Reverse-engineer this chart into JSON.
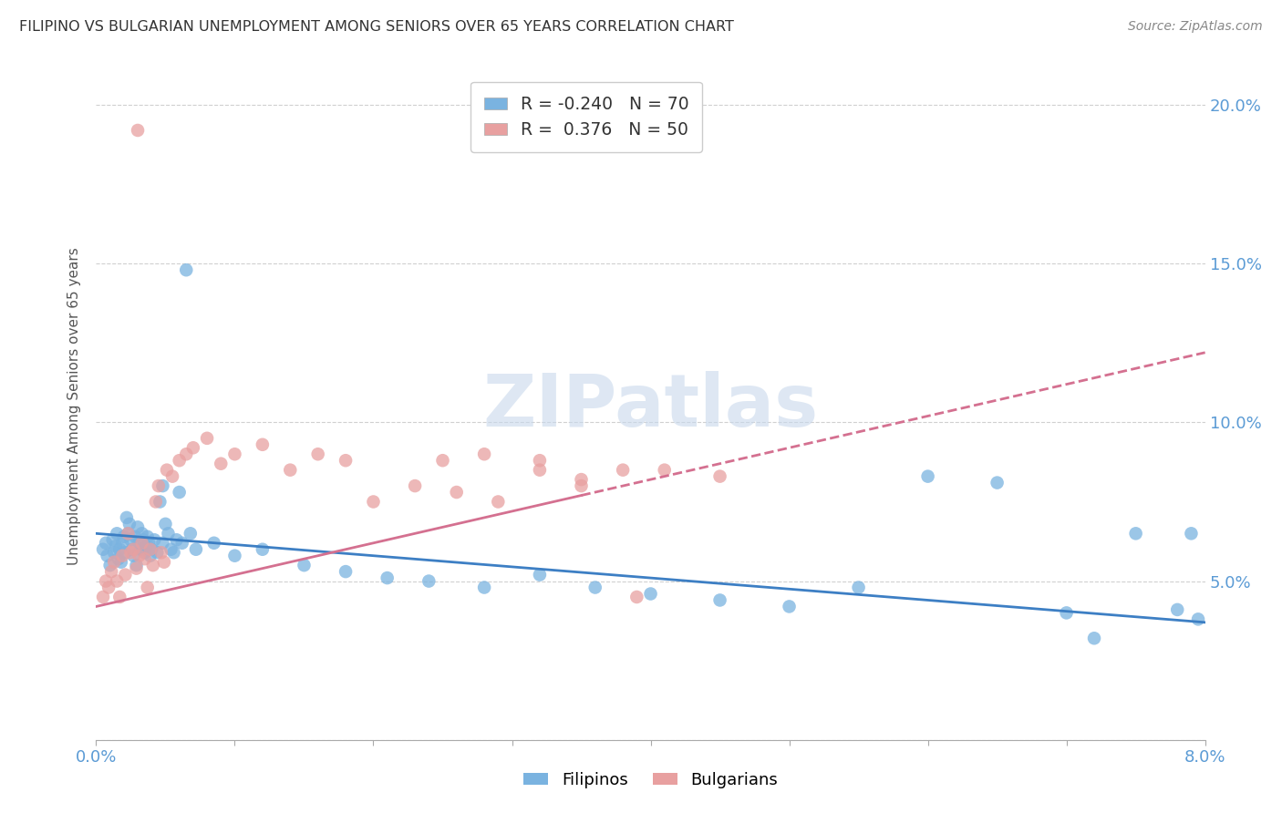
{
  "title": "FILIPINO VS BULGARIAN UNEMPLOYMENT AMONG SENIORS OVER 65 YEARS CORRELATION CHART",
  "source": "Source: ZipAtlas.com",
  "ylabel": "Unemployment Among Seniors over 65 years",
  "xmin": 0.0,
  "xmax": 8.0,
  "ymin": 0.0,
  "ymax": 21.0,
  "filipino_R": -0.24,
  "filipino_N": 70,
  "bulgarian_R": 0.376,
  "bulgarian_N": 50,
  "color_filipino": "#7ab3e0",
  "color_bulgarian": "#e8a0a0",
  "color_trendline_filipino": "#3d7fc4",
  "color_trendline_bulgarian": "#d47090",
  "watermark_text": "ZIPatlas",
  "trendline_fil_x0": 0.0,
  "trendline_fil_y0": 6.5,
  "trendline_fil_x1": 8.0,
  "trendline_fil_y1": 3.7,
  "trendline_bul_x0": 0.0,
  "trendline_bul_y0": 4.2,
  "trendline_bul_x1": 8.0,
  "trendline_bul_y1": 12.2,
  "trendline_bul_solid_end": 3.5,
  "filipino_x": [
    0.05,
    0.07,
    0.08,
    0.1,
    0.12,
    0.13,
    0.14,
    0.15,
    0.16,
    0.17,
    0.18,
    0.19,
    0.2,
    0.21,
    0.22,
    0.23,
    0.24,
    0.25,
    0.26,
    0.27,
    0.28,
    0.29,
    0.3,
    0.31,
    0.32,
    0.33,
    0.34,
    0.35,
    0.36,
    0.37,
    0.38,
    0.39,
    0.4,
    0.42,
    0.44,
    0.46,
    0.48,
    0.5,
    0.52,
    0.54,
    0.56,
    0.58,
    0.6,
    0.62,
    0.65,
    0.68,
    0.72,
    0.48,
    0.85,
    1.0,
    1.2,
    1.5,
    1.8,
    2.1,
    2.4,
    2.8,
    3.2,
    3.6,
    4.0,
    4.5,
    5.0,
    5.5,
    6.0,
    6.5,
    7.0,
    7.2,
    7.5,
    7.8,
    7.9,
    7.95
  ],
  "filipino_y": [
    6.0,
    6.2,
    5.8,
    5.5,
    6.3,
    5.9,
    6.1,
    6.5,
    5.7,
    6.0,
    5.6,
    6.2,
    6.4,
    5.9,
    7.0,
    6.5,
    6.8,
    6.3,
    6.0,
    5.8,
    6.4,
    5.5,
    6.7,
    6.2,
    6.0,
    6.5,
    6.3,
    5.9,
    6.1,
    6.4,
    6.2,
    5.8,
    6.0,
    6.3,
    5.9,
    7.5,
    6.2,
    6.8,
    6.5,
    6.0,
    5.9,
    6.3,
    7.8,
    6.2,
    14.8,
    6.5,
    6.0,
    8.0,
    6.2,
    5.8,
    6.0,
    5.5,
    5.3,
    5.1,
    5.0,
    4.8,
    5.2,
    4.8,
    4.6,
    4.4,
    4.2,
    4.8,
    8.3,
    8.1,
    4.0,
    3.2,
    6.5,
    4.1,
    6.5,
    3.8
  ],
  "bulgarian_x": [
    0.05,
    0.07,
    0.09,
    0.11,
    0.13,
    0.15,
    0.17,
    0.19,
    0.21,
    0.23,
    0.25,
    0.27,
    0.29,
    0.31,
    0.33,
    0.35,
    0.37,
    0.39,
    0.41,
    0.43,
    0.45,
    0.47,
    0.49,
    0.51,
    0.55,
    0.6,
    0.65,
    0.3,
    0.7,
    0.8,
    0.9,
    1.0,
    1.2,
    1.4,
    1.6,
    1.8,
    2.0,
    2.3,
    2.6,
    2.9,
    3.2,
    3.5,
    3.2,
    4.5,
    2.8,
    3.8,
    2.5,
    3.5,
    4.1,
    3.9
  ],
  "bulgarian_y": [
    4.5,
    5.0,
    4.8,
    5.3,
    5.6,
    5.0,
    4.5,
    5.8,
    5.2,
    6.5,
    5.9,
    6.0,
    5.4,
    5.8,
    6.2,
    5.7,
    4.8,
    6.0,
    5.5,
    7.5,
    8.0,
    5.9,
    5.6,
    8.5,
    8.3,
    8.8,
    9.0,
    19.2,
    9.2,
    9.5,
    8.7,
    9.0,
    9.3,
    8.5,
    9.0,
    8.8,
    7.5,
    8.0,
    7.8,
    7.5,
    8.5,
    8.0,
    8.8,
    8.3,
    9.0,
    8.5,
    8.8,
    8.2,
    8.5,
    4.5
  ]
}
